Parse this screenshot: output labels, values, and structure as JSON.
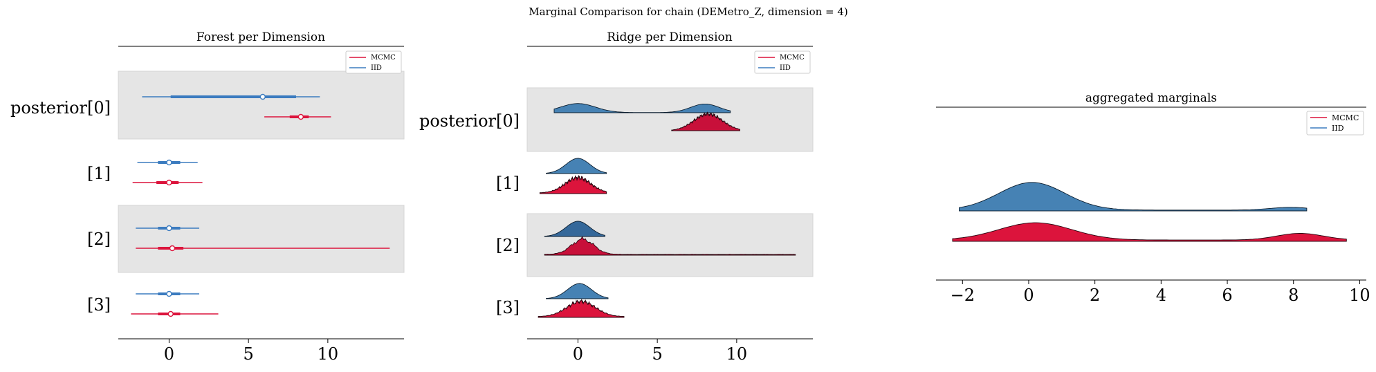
{
  "suptitle": "Marginal Comparison for chain (DEMetro_Z, dimension = 4)",
  "colors": {
    "MCMC": "#dc143c",
    "IID": "#3b7bbf",
    "ridge_MCMC": "#dc143c",
    "ridge_IID": "#4682b4",
    "band": "#e5e5e5"
  },
  "chart_data": [
    {
      "panel": "forest",
      "type": "forest",
      "title": "Forest per Dimension",
      "xlim": [
        -3.2,
        14.8
      ],
      "xticks": [
        0,
        5,
        10
      ],
      "row_labels": [
        "posterior[0]",
        "[1]",
        "[2]",
        "[3]"
      ],
      "legend": {
        "entries": [
          "MCMC",
          "IID"
        ],
        "placement": "top-right"
      },
      "series": [
        {
          "name": "IID",
          "rows": [
            {
              "lo": -1.7,
              "q1": 0.1,
              "med": 5.9,
              "q3": 8.0,
              "hi": 9.5
            },
            {
              "lo": -2.0,
              "q1": -0.7,
              "med": 0.0,
              "q3": 0.7,
              "hi": 1.8
            },
            {
              "lo": -2.1,
              "q1": -0.7,
              "med": 0.0,
              "q3": 0.7,
              "hi": 1.9
            },
            {
              "lo": -2.1,
              "q1": -0.7,
              "med": 0.0,
              "q3": 0.7,
              "hi": 1.9
            }
          ]
        },
        {
          "name": "MCMC",
          "rows": [
            {
              "lo": 6.0,
              "q1": 7.6,
              "med": 8.3,
              "q3": 8.8,
              "hi": 10.2
            },
            {
              "lo": -2.3,
              "q1": -0.8,
              "med": 0.0,
              "q3": 0.6,
              "hi": 2.1
            },
            {
              "lo": -2.1,
              "q1": -0.7,
              "med": 0.2,
              "q3": 0.9,
              "hi": 13.9
            },
            {
              "lo": -2.4,
              "q1": -0.7,
              "med": 0.1,
              "q3": 0.7,
              "hi": 3.1
            }
          ]
        }
      ]
    },
    {
      "panel": "ridge",
      "type": "area",
      "title": "Ridge per Dimension",
      "xlim": [
        -3.2,
        14.8
      ],
      "xticks": [
        0,
        5,
        10
      ],
      "row_labels": [
        "posterior[0]",
        "[1]",
        "[2]",
        "[3]"
      ],
      "legend": {
        "entries": [
          "MCMC",
          "IID"
        ],
        "placement": "top-right"
      },
      "series": [
        {
          "name": "IID",
          "rows": [
            {
              "range": [
                -1.5,
                9.6
              ],
              "peaks": [
                [
                  0.0,
                  1.1,
                  1.0
                ],
                [
                  8.0,
                  0.9,
                  0.95
                ]
              ],
              "base": 0.02,
              "noise": 0
            },
            {
              "range": [
                -2.0,
                1.8
              ],
              "peaks": [
                [
                  0.0,
                  0.75,
                  1.0
                ]
              ],
              "base": 0,
              "noise": 0
            },
            {
              "range": [
                -2.1,
                1.7
              ],
              "peaks": [
                [
                  0.0,
                  0.75,
                  1.0
                ]
              ],
              "base": 0,
              "noise": 0
            },
            {
              "range": [
                -2.0,
                1.9
              ],
              "peaks": [
                [
                  0.1,
                  0.75,
                  1.0
                ]
              ],
              "base": 0,
              "noise": 0
            }
          ]
        },
        {
          "name": "MCMC",
          "rows": [
            {
              "range": [
                5.9,
                10.2
              ],
              "peaks": [
                [
                  8.2,
                  0.9,
                  1.0
                ]
              ],
              "base": 0,
              "noise": 0.14
            },
            {
              "range": [
                -2.4,
                1.8
              ],
              "peaks": [
                [
                  0.0,
                  0.8,
                  1.0
                ]
              ],
              "base": 0.05,
              "noise": 0.18
            },
            {
              "range": [
                -2.1,
                13.7
              ],
              "peaks": [
                [
                  0.3,
                  0.7,
                  1.0
                ]
              ],
              "base": 0.05,
              "noise": 0.15
            },
            {
              "range": [
                -2.5,
                2.9
              ],
              "peaks": [
                [
                  0.2,
                  0.9,
                  1.0
                ]
              ],
              "base": 0.05,
              "noise": 0.15
            }
          ]
        }
      ]
    },
    {
      "panel": "aggregated",
      "type": "area",
      "title": "aggregated marginals",
      "xlim": [
        -2.8,
        10.2
      ],
      "xticks": [
        -2,
        0,
        2,
        4,
        6,
        8,
        10
      ],
      "legend": {
        "entries": [
          "MCMC",
          "IID"
        ],
        "placement": "top-right"
      },
      "series": [
        {
          "name": "IID",
          "range": [
            -2.1,
            8.4
          ],
          "peaks": [
            [
              0.1,
              1.0,
              1.0
            ],
            [
              7.9,
              0.6,
              0.1
            ]
          ],
          "base": 0.03
        },
        {
          "name": "MCMC",
          "range": [
            -2.3,
            9.6
          ],
          "peaks": [
            [
              0.2,
              1.1,
              0.78
            ],
            [
              8.2,
              0.7,
              0.3
            ]
          ],
          "base": 0.06
        }
      ]
    }
  ]
}
